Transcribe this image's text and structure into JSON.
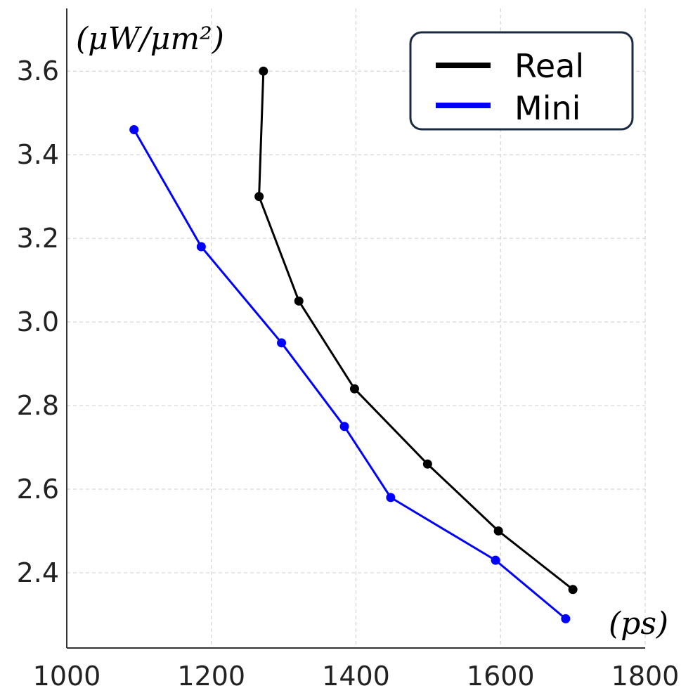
{
  "chart_data": {
    "type": "line",
    "title": "",
    "xlabel": "(ps)",
    "ylabel": "(μW/μm²)",
    "xlim": [
      1000,
      1800
    ],
    "ylim": [
      2.22,
      3.75
    ],
    "x_ticks": [
      1000,
      1200,
      1400,
      1600,
      1800
    ],
    "y_ticks": [
      2.4,
      2.6,
      2.8,
      3.0,
      3.2,
      3.4,
      3.6
    ],
    "x_tick_labels": [
      "1000",
      "1200",
      "1400",
      "1600",
      "1800"
    ],
    "y_tick_labels": [
      "2.4",
      "2.6",
      "2.8",
      "3.0",
      "3.2",
      "3.4",
      "3.6"
    ],
    "grid": true,
    "legend_position": "top-right",
    "series": [
      {
        "name": "Real",
        "color": "#000000",
        "x": [
          1272,
          1266,
          1321,
          1398,
          1499,
          1597,
          1700
        ],
        "y": [
          3.6,
          3.3,
          3.05,
          2.84,
          2.66,
          2.5,
          2.36
        ]
      },
      {
        "name": "Mini",
        "color": "#0000ff",
        "x": [
          1093,
          1186,
          1297,
          1384,
          1448,
          1593,
          1690
        ],
        "y": [
          3.46,
          3.18,
          2.95,
          2.75,
          2.58,
          2.43,
          2.29
        ]
      }
    ]
  }
}
